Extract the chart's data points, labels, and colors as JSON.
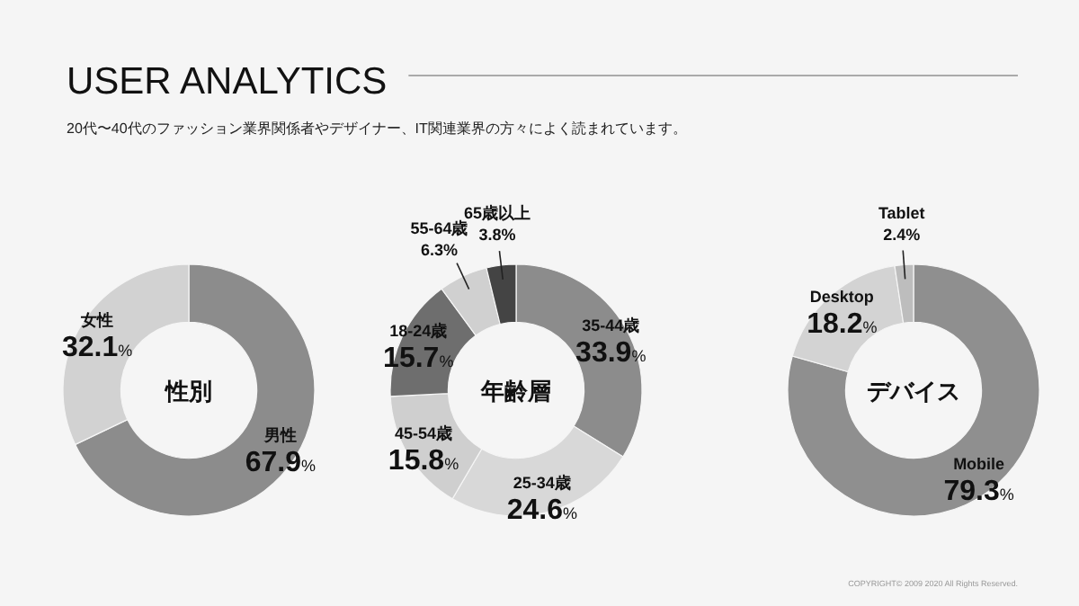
{
  "chart_data": [
    {
      "type": "other",
      "title": "USER ANALYTICS",
      "subtitle": "20代〜40代のファッション業界関係者やデザイナー、IT関連業界の方々によく読まれています。",
      "annotations": [
        "COPYRIGHT© 2009 2020 All Rights Reserved."
      ]
    },
    {
      "type": "donut",
      "title": "性別",
      "categories": [
        "男性",
        "女性"
      ],
      "values": [
        67.9,
        32.1
      ],
      "value_labels": [
        "67.9%",
        "32.1%"
      ],
      "colors": [
        "#8c8c8c",
        "#d2d2d2"
      ]
    },
    {
      "type": "donut",
      "title": "年齢層",
      "categories": [
        "35-44歳",
        "25-34歳",
        "45-54歳",
        "18-24歳",
        "55-64歳",
        "65歳以上"
      ],
      "values": [
        33.9,
        24.6,
        15.8,
        15.7,
        6.3,
        3.8
      ],
      "value_labels": [
        "33.9%",
        "24.6%",
        "15.8%",
        "15.7%",
        "6.3%",
        "3.8%"
      ],
      "colors": [
        "#8c8c8c",
        "#d8d8d8",
        "#cfcfcf",
        "#6e6e6e",
        "#d0d0d0",
        "#444444"
      ]
    },
    {
      "type": "donut",
      "title": "デバイス",
      "categories": [
        "Mobile",
        "Desktop",
        "Tablet"
      ],
      "values": [
        79.3,
        18.2,
        2.4
      ],
      "value_labels": [
        "79.3%",
        "18.2%",
        "2.4%"
      ],
      "colors": [
        "#8f8f8f",
        "#d3d3d3",
        "#bdbdbd"
      ]
    }
  ]
}
